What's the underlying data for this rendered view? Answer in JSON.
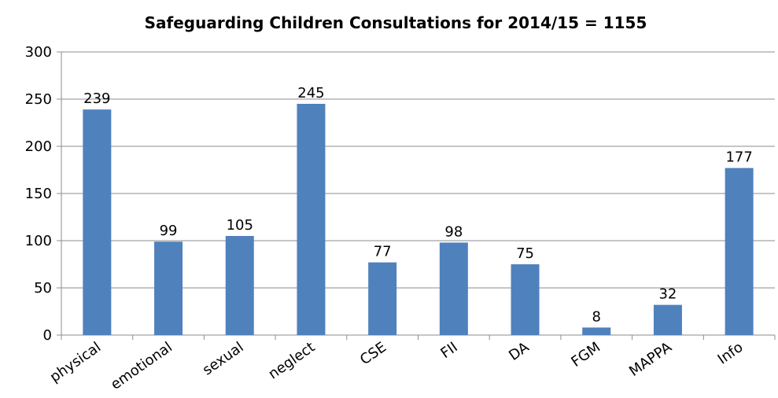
{
  "chart_data": {
    "type": "bar",
    "title": "Safeguarding Children Consultations  for 2014/15 = 1155",
    "xlabel": "",
    "ylabel": "",
    "categories": [
      "physical",
      "emotional",
      "sexual",
      "neglect",
      "CSE",
      "FII",
      "DA",
      "FGM",
      "MAPPA",
      "Info"
    ],
    "series": [
      {
        "values": [
          239,
          99,
          105,
          245,
          77,
          98,
          75,
          8,
          32,
          177
        ]
      }
    ],
    "ylim": [
      0,
      300
    ],
    "yticks": [
      0,
      50,
      100,
      150,
      200,
      250,
      300
    ],
    "grid": true,
    "legend": "none",
    "bar_color": "#4f81bd",
    "data_labels": true
  }
}
